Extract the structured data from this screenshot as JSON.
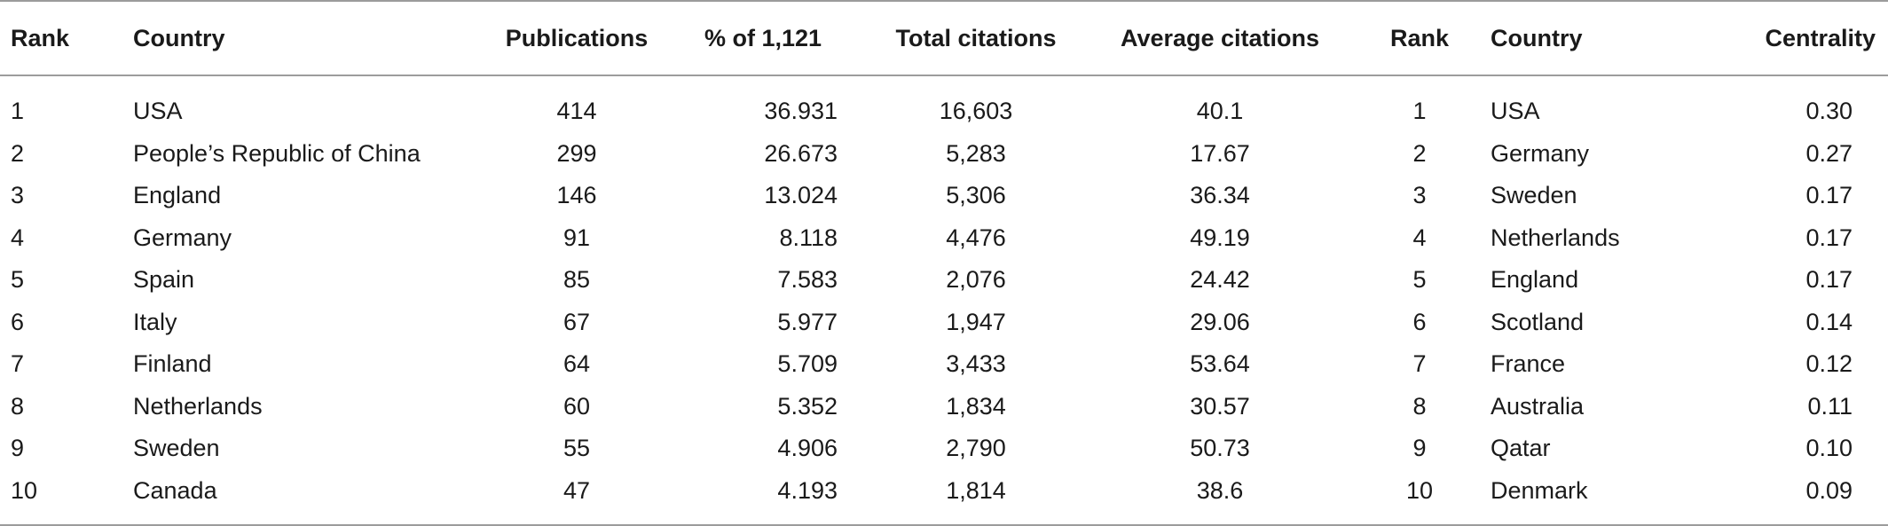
{
  "table": {
    "headers": [
      "Rank",
      "Country",
      "Publications",
      "% of 1,121",
      "Total citations",
      "Average citations",
      "Rank",
      "Country",
      "Centrality"
    ],
    "rows": [
      [
        "1",
        "USA",
        "414",
        "36.931",
        "16,603",
        "40.1",
        "1",
        "USA",
        "0.30"
      ],
      [
        "2",
        "People’s Republic of China",
        "299",
        "26.673",
        "5,283",
        "17.67",
        "2",
        "Germany",
        "0.27"
      ],
      [
        "3",
        "England",
        "146",
        "13.024",
        "5,306",
        "36.34",
        "3",
        "Sweden",
        "0.17"
      ],
      [
        "4",
        "Germany",
        "91",
        "8.118",
        "4,476",
        "49.19",
        "4",
        "Netherlands",
        "0.17"
      ],
      [
        "5",
        "Spain",
        "85",
        "7.583",
        "2,076",
        "24.42",
        "5",
        "England",
        "0.17"
      ],
      [
        "6",
        "Italy",
        "67",
        "5.977",
        "1,947",
        "29.06",
        "6",
        "Scotland",
        "0.14"
      ],
      [
        "7",
        "Finland",
        "64",
        "5.709",
        "3,433",
        "53.64",
        "7",
        "France",
        "0.12"
      ],
      [
        "8",
        "Netherlands",
        "60",
        "5.352",
        "1,834",
        "30.57",
        "8",
        "Australia",
        "0.11"
      ],
      [
        "9",
        "Sweden",
        "55",
        "4.906",
        "2,790",
        "50.73",
        "9",
        "Qatar",
        "0.10"
      ],
      [
        "10",
        "Canada",
        "47",
        "4.193",
        "1,814",
        "38.6",
        "10",
        "Denmark",
        "0.09"
      ]
    ]
  }
}
